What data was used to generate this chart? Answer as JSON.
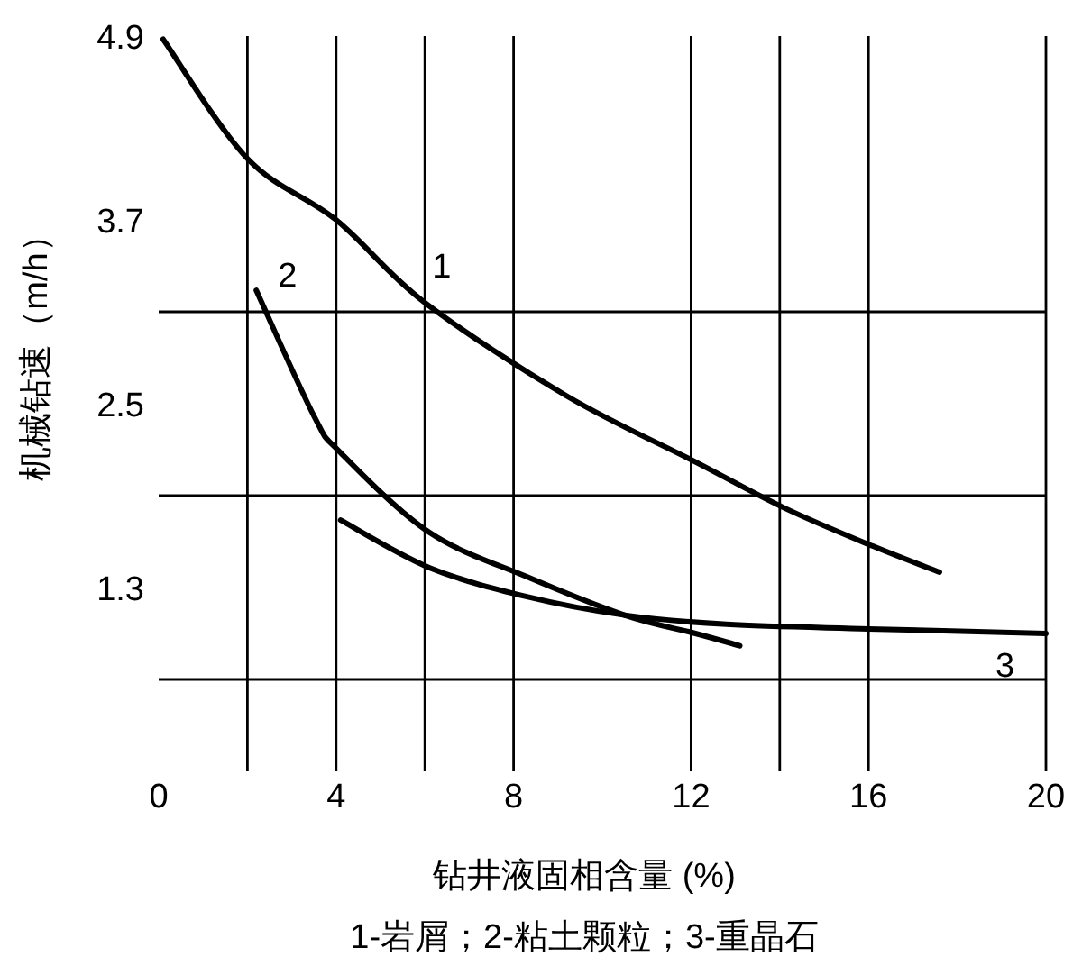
{
  "chart_data": {
    "type": "line",
    "xlabel": "钻井液固相含量 (%)",
    "ylabel": "机械钻速（m/h）",
    "xlim": [
      0,
      20
    ],
    "ylim": [
      0.1,
      4.9
    ],
    "xticks": [
      0,
      {
        "value": 2,
        "label": null
      },
      4,
      {
        "value": 6,
        "label": null
      },
      8,
      12,
      {
        "value": 14,
        "label": null
      },
      16,
      20
    ],
    "yticks": [
      {
        "value": 0.7,
        "label": null
      },
      1.3,
      {
        "value": 1.9,
        "label": null
      },
      2.5,
      {
        "value": 3.1,
        "label": null
      },
      3.7,
      4.9
    ],
    "grid": true,
    "marker": "none",
    "line_style": "solid",
    "series": [
      {
        "name": "1",
        "color": "#000000",
        "x": [
          0.1,
          2,
          4,
          6,
          9.2,
          12.1,
          14.1,
          16.1,
          17.6
        ],
        "values": [
          4.88,
          4.1,
          3.7,
          3.16,
          2.55,
          2.12,
          1.82,
          1.57,
          1.4
        ]
      },
      {
        "name": "2",
        "color": "#000000",
        "x": [
          2.2,
          3.5,
          4.1,
          6.1,
          8.3,
          10.5,
          12.1,
          13.1
        ],
        "values": [
          3.24,
          2.42,
          2.18,
          1.66,
          1.37,
          1.12,
          1.0,
          0.92
        ]
      },
      {
        "name": "3",
        "color": "#000000",
        "x": [
          4.1,
          6.1,
          8.3,
          10.5,
          12.8,
          16,
          20
        ],
        "values": [
          1.74,
          1.43,
          1.24,
          1.12,
          1.06,
          1.03,
          1.0
        ]
      }
    ],
    "annotations": [
      "1-岩屑；2-粘土颗粒；3-重晶石"
    ]
  }
}
